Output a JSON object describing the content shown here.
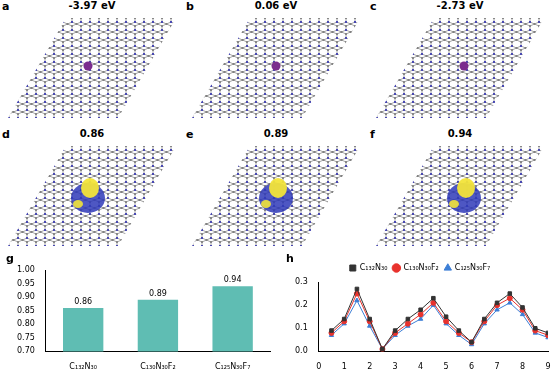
{
  "panels": [
    {
      "label": "a",
      "text": "-3.97 eV",
      "kind": "structure"
    },
    {
      "label": "b",
      "text": "0.06 eV",
      "kind": "structure"
    },
    {
      "label": "c",
      "text": "-2.73 eV",
      "kind": "structure"
    },
    {
      "label": "d",
      "text": "0.86",
      "kind": "charge"
    },
    {
      "label": "e",
      "text": "0.89",
      "kind": "charge"
    },
    {
      "label": "f",
      "text": "0.94",
      "kind": "charge"
    }
  ],
  "chart_data": [
    {
      "label": "g",
      "type": "bar",
      "categories": [
        "C₁₃₂N₃₀",
        "C₁₃₀N₃₀F₂",
        "C₁₂₅N₃₀F₇"
      ],
      "values": [
        0.86,
        0.89,
        0.94
      ],
      "color": "#5fbdb3",
      "data_labels": true,
      "grid": false,
      "ylim": [
        0.7,
        1.0
      ],
      "yticks": [
        {
          "value": 0.7,
          "label": "0.70"
        },
        {
          "value": 0.75,
          "label": "0.75"
        },
        {
          "value": 0.8,
          "label": "0.80"
        },
        {
          "value": 0.85,
          "label": "0.85"
        },
        {
          "value": 0.9,
          "label": "0.90"
        },
        {
          "value": 0.95,
          "label": "0.95"
        },
        {
          "value": 1.0,
          "label": "1.00"
        }
      ]
    },
    {
      "label": "h",
      "type": "line",
      "x": [
        0.5,
        1,
        1.5,
        2,
        2.5,
        3,
        3.5,
        4,
        4.5,
        5,
        5.5,
        6,
        6.5,
        7,
        7.5,
        8,
        8.5,
        9
      ],
      "series": [
        {
          "name": "C₁₃₂N₃₀",
          "color": "#333333",
          "marker": "square",
          "values": [
            0.09,
            0.14,
            0.27,
            0.14,
            0.01,
            0.09,
            0.14,
            0.18,
            0.23,
            0.15,
            0.09,
            0.04,
            0.14,
            0.21,
            0.25,
            0.19,
            0.1,
            0.08
          ]
        },
        {
          "name": "C₁₃₀N₃₀F₂",
          "color": "#e8322d",
          "marker": "circle",
          "values": [
            0.08,
            0.13,
            0.25,
            0.13,
            0.01,
            0.08,
            0.12,
            0.16,
            0.21,
            0.13,
            0.08,
            0.04,
            0.13,
            0.2,
            0.23,
            0.18,
            0.09,
            0.07
          ]
        },
        {
          "name": "C₁₂₅N₃₀F₇",
          "color": "#3d7fd6",
          "marker": "triangle",
          "values": [
            0.07,
            0.12,
            0.22,
            0.11,
            0.01,
            0.07,
            0.11,
            0.14,
            0.2,
            0.12,
            0.07,
            0.03,
            0.12,
            0.18,
            0.21,
            0.16,
            0.08,
            0.06
          ]
        }
      ],
      "legend": "top",
      "grid": false,
      "xlim": [
        0,
        9
      ],
      "xticks": [
        0,
        1,
        2,
        3,
        4,
        5,
        6,
        7,
        8,
        9
      ],
      "ylim": [
        0,
        0.3
      ],
      "yticks": [
        {
          "value": 0,
          "label": "0.0"
        },
        {
          "value": 0.1,
          "label": "0.1"
        },
        {
          "value": 0.2,
          "label": "0.2"
        },
        {
          "value": 0.3,
          "label": "0.3"
        }
      ]
    }
  ]
}
